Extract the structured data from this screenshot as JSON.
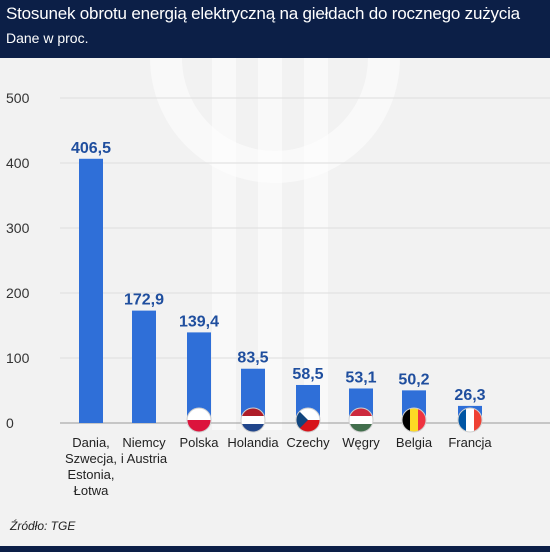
{
  "header": {
    "title": "Stosunek obrotu energią elektryczną na giełdach do rocznego zużycia",
    "subtitle": "Dane w proc."
  },
  "source": "Źródło: TGE",
  "colors": {
    "bar": "#2f6fd8",
    "value_label": "#1f4e9e",
    "banner": "#0c1f47",
    "background": "#f2f2f2"
  },
  "chart_data": {
    "type": "bar",
    "title": "Stosunek obrotu energią elektryczną na giełdach do rocznego zużycia",
    "subtitle": "Dane w proc.",
    "categories": [
      [
        "Dania,",
        "Szwecja,",
        "Estonia,",
        "Łotwa"
      ],
      [
        "Niemcy",
        "i Austria"
      ],
      [
        "Polska"
      ],
      [
        "Holandia"
      ],
      [
        "Czechy"
      ],
      [
        "Węgry"
      ],
      [
        "Belgia"
      ],
      [
        "Francja"
      ]
    ],
    "values": [
      406.5,
      172.9,
      139.4,
      83.5,
      58.5,
      53.1,
      50.2,
      26.3
    ],
    "value_labels": [
      "406,5",
      "172,9",
      "139,4",
      "83,5",
      "58,5",
      "53,1",
      "50,2",
      "26,3"
    ],
    "flags": [
      null,
      null,
      "poland-flag-icon",
      "netherlands-flag-icon",
      "czech-flag-icon",
      "hungary-flag-icon",
      "belgium-flag-icon",
      "france-flag-icon"
    ],
    "yticks": [
      0,
      100,
      200,
      300,
      400,
      500
    ],
    "ylim": [
      0,
      500
    ],
    "grid": true
  }
}
